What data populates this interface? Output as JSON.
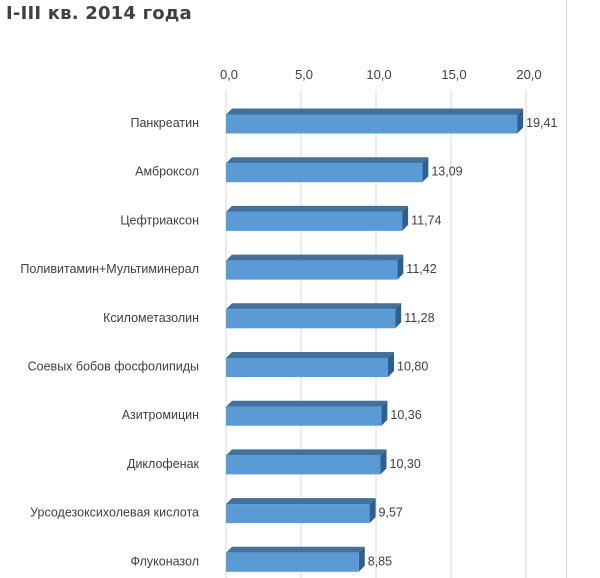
{
  "page": {
    "title": "I-III кв. 2014 года"
  },
  "chart_data": {
    "type": "bar",
    "orientation": "horizontal",
    "title": "I-III кв. 2014 года",
    "categories": [
      "Панкреатин",
      "Амброксол",
      "Цефтриаксон",
      "Поливитамин+Мультиминерал",
      "Ксилометазолин",
      "Соевых бобов фосфолипиды",
      "Азитромицин",
      "Диклофенак",
      "Урсодезоксихолевая кислота",
      "Флуконазол"
    ],
    "values": [
      19.41,
      13.09,
      11.74,
      11.42,
      11.28,
      10.8,
      10.36,
      10.3,
      9.57,
      8.85
    ],
    "value_labels": [
      "19,41",
      "13,09",
      "11,74",
      "11,42",
      "11,28",
      "10,80",
      "10,36",
      "10,30",
      "9,57",
      "8,85"
    ],
    "xlim": [
      0,
      20
    ],
    "x_ticks": [
      0,
      5,
      10,
      15,
      20
    ],
    "x_tick_labels": [
      "0,0",
      "5,0",
      "10,0",
      "15,0",
      "20,0"
    ],
    "x_axis_position": "top",
    "grid": true,
    "bar_color": "#5b9bd5",
    "bar_side_color": "#2e5f8f",
    "bar_top_color": "#41719c",
    "grid_color": "#d9d9d9",
    "text_color": "#404040"
  }
}
